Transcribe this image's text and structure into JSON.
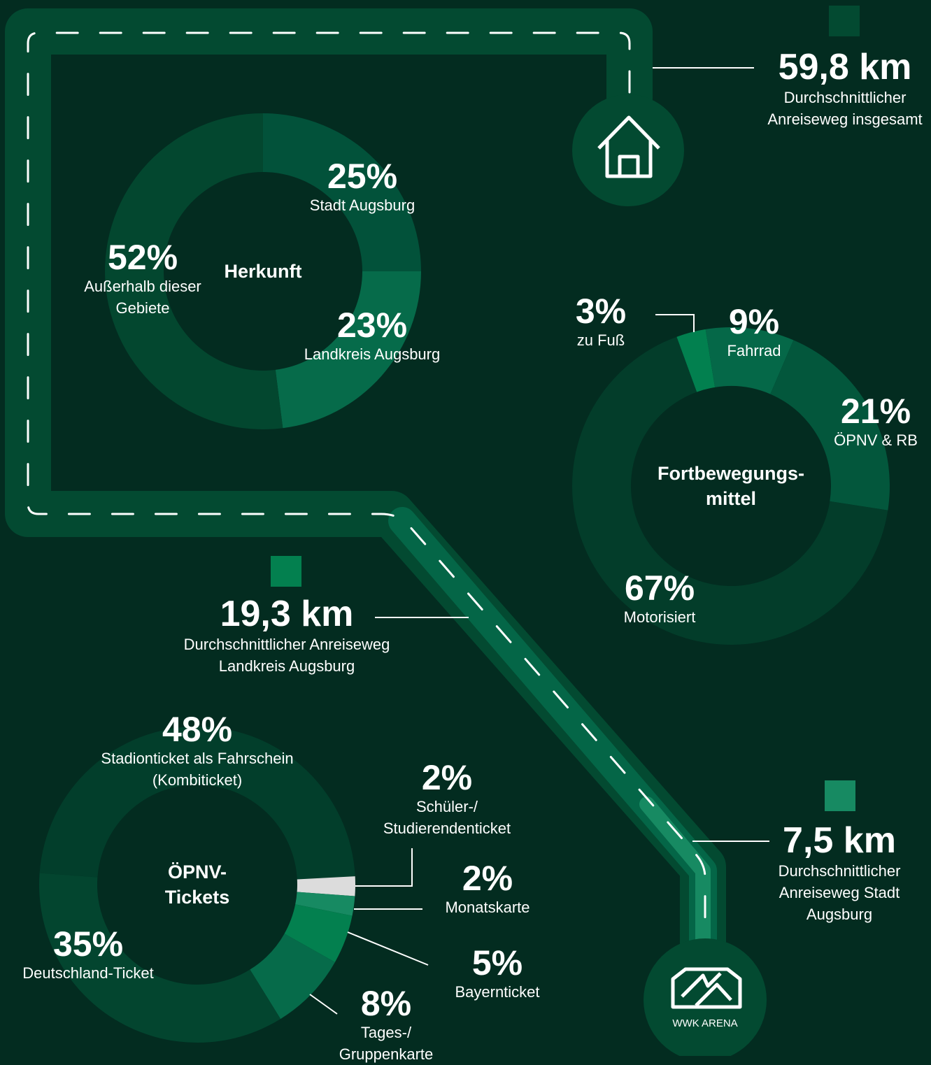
{
  "chart_data": [
    {
      "type": "donut",
      "title": "Herkunft",
      "categories": [
        "Stadt Augsburg",
        "Landkreis Augsburg",
        "Außerhalb dieser Gebiete"
      ],
      "values": [
        25,
        23,
        52
      ],
      "value_labels": [
        "25%",
        "23%",
        "52%"
      ],
      "colors": [
        "#02523a",
        "#066b4a",
        "#03472f"
      ]
    },
    {
      "type": "donut",
      "title": "Fortbewegungs-mittel",
      "categories": [
        "zu Fuß",
        "Fahrrad",
        "ÖPNV & RB",
        "Motorisiert"
      ],
      "values": [
        3,
        9,
        21,
        67
      ],
      "value_labels": [
        "3%",
        "9%",
        "21%",
        "67%"
      ],
      "colors": [
        "#02804f",
        "#056848",
        "#03573c",
        "#033d2a"
      ]
    },
    {
      "type": "donut",
      "title": "ÖPNV-Tickets",
      "categories": [
        "Stadionticket als Fahrschein (Kombiticket)",
        "Schüler-/ Studierendenticket",
        "Monatskarte",
        "Bayernticket",
        "Tages-/ Gruppenkarte",
        "Deutschland-Ticket"
      ],
      "values": [
        48,
        2,
        2,
        5,
        8,
        35
      ],
      "value_labels": [
        "48%",
        "2%",
        "2%",
        "5%",
        "8%",
        "35%"
      ],
      "colors": [
        "#023e2b",
        "#dcdcdc",
        "#178a62",
        "#03804f",
        "#066b4a",
        "#03452f"
      ]
    }
  ],
  "distances": [
    {
      "value_label": "59,8 km",
      "label": "Durchschnittlicher Anreiseweg insgesamt",
      "color": "#034a31"
    },
    {
      "value_label": "19,3 km",
      "label": "Durchschnittlicher Anreiseweg Landkreis Augsburg",
      "color": "#03804f"
    },
    {
      "value_label": "7,5 km",
      "label": "Durchschnittlicher Anreiseweg Stadt Augsburg",
      "color": "#178a62"
    }
  ],
  "arena_label": "WWK ARENA"
}
